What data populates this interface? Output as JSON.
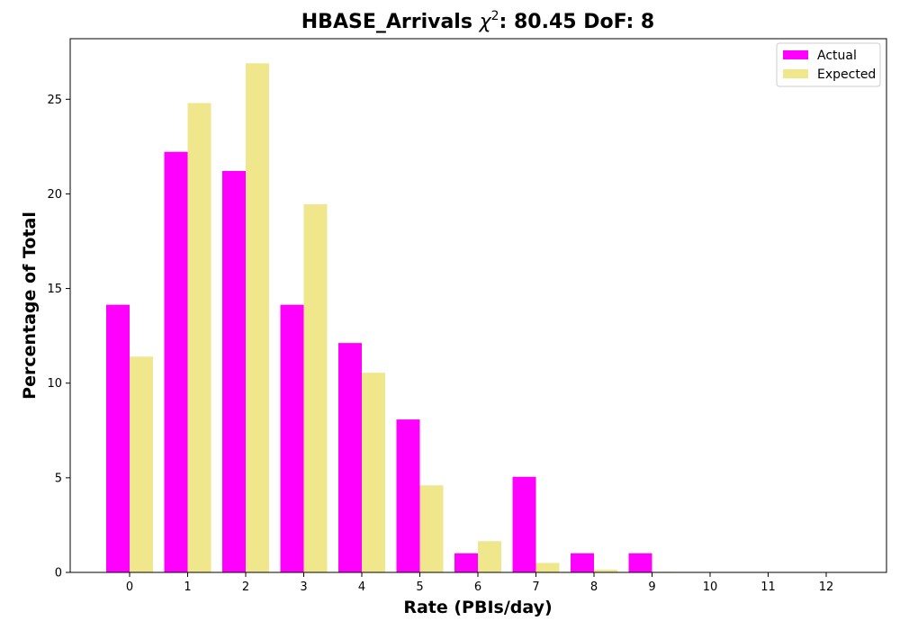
{
  "chart_data": {
    "type": "bar",
    "title_main": "HBASE_Arrivals ",
    "title_chi": "χ",
    "title_sup": "2",
    "title_rest": ": 80.45 DoF: 8",
    "xlabel": "Rate (PBIs/day)",
    "ylabel": "Percentage of Total",
    "categories": [
      "0",
      "1",
      "2",
      "3",
      "4",
      "5",
      "6",
      "7",
      "8",
      "9",
      "10",
      "11",
      "12"
    ],
    "ylim": [
      0,
      28.2
    ],
    "yticks": [
      0,
      5,
      10,
      15,
      20,
      25
    ],
    "grid": false,
    "legend_position": "top-right",
    "series": [
      {
        "name": "Actual",
        "color": "#ff00ff",
        "values": [
          14.14,
          22.22,
          21.21,
          14.14,
          12.12,
          8.08,
          1.01,
          5.05,
          1.01,
          1.01,
          0,
          0,
          0
        ]
      },
      {
        "name": "Expected",
        "color": "#f0e68c",
        "values": [
          11.4,
          24.8,
          26.9,
          19.45,
          10.55,
          4.6,
          1.65,
          0.5,
          0.14,
          0.03,
          0.01,
          0,
          0
        ]
      }
    ]
  }
}
